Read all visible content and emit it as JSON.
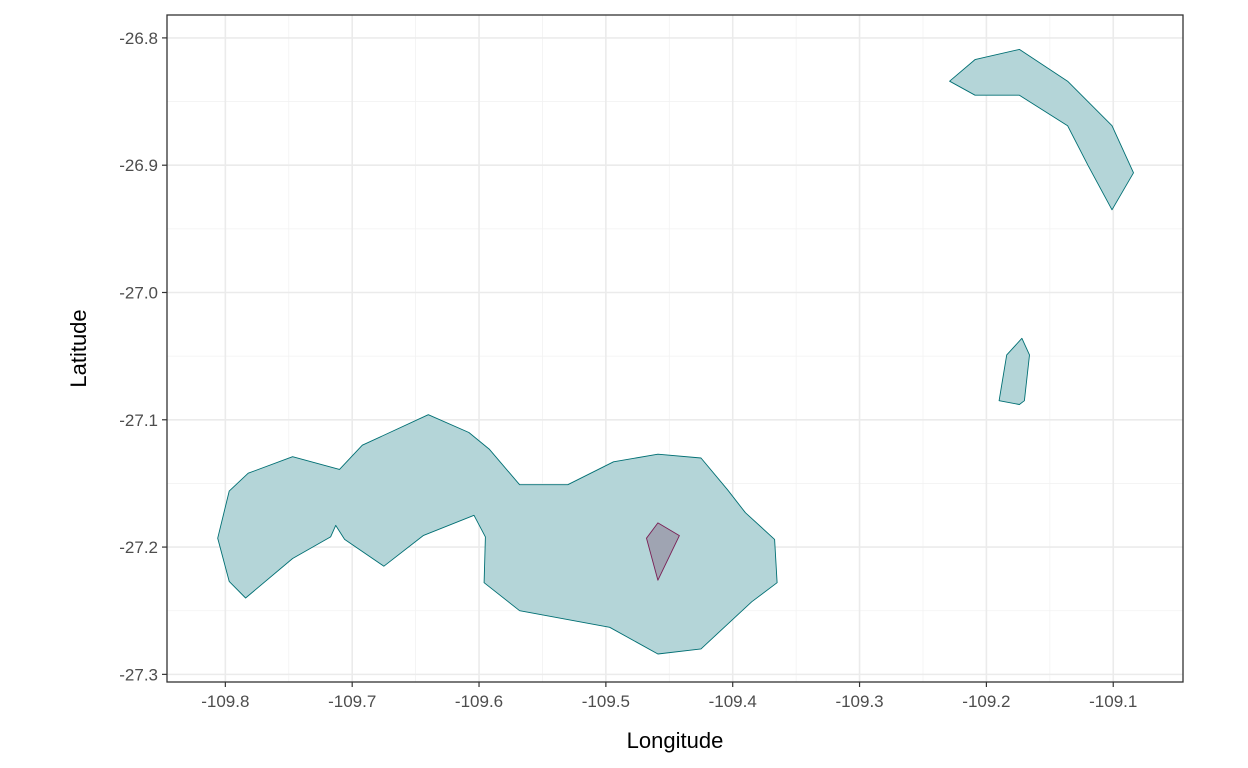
{
  "chart_data": {
    "type": "map",
    "title": "",
    "xlabel": "Longitude",
    "ylabel": "Latitude",
    "xlim": [
      -109.846,
      -109.045
    ],
    "ylim": [
      -27.306,
      -26.782
    ],
    "grid": true,
    "theme": "bw",
    "x_ticks": [
      {
        "value": -109.8,
        "label": "-109.8"
      },
      {
        "value": -109.7,
        "label": "-109.7"
      },
      {
        "value": -109.6,
        "label": "-109.6"
      },
      {
        "value": -109.5,
        "label": "-109.5"
      },
      {
        "value": -109.4,
        "label": "-109.4"
      },
      {
        "value": -109.3,
        "label": "-109.3"
      },
      {
        "value": -109.2,
        "label": "-109.2"
      },
      {
        "value": -109.1,
        "label": "-109.1"
      }
    ],
    "y_ticks": [
      {
        "value": -26.8,
        "label": "-26.8"
      },
      {
        "value": -26.9,
        "label": "-26.9"
      },
      {
        "value": -27.0,
        "label": "-27.0"
      },
      {
        "value": -27.1,
        "label": "-27.1"
      },
      {
        "value": -27.2,
        "label": "-27.2"
      },
      {
        "value": -27.3,
        "label": "-27.3"
      }
    ],
    "polygons": [
      {
        "fill": "#b4d5d8",
        "stroke": "#006f73",
        "points": [
          [
            -109.806,
            -27.193
          ],
          [
            -109.797,
            -27.227
          ],
          [
            -109.784,
            -27.24
          ],
          [
            -109.747,
            -27.209
          ],
          [
            -109.717,
            -27.192
          ],
          [
            -109.713,
            -27.183
          ],
          [
            -109.706,
            -27.194
          ],
          [
            -109.675,
            -27.215
          ],
          [
            -109.644,
            -27.191
          ],
          [
            -109.604,
            -27.175
          ],
          [
            -109.595,
            -27.192
          ],
          [
            -109.596,
            -27.228
          ],
          [
            -109.568,
            -27.25
          ],
          [
            -109.497,
            -27.263
          ],
          [
            -109.459,
            -27.284
          ],
          [
            -109.425,
            -27.28
          ],
          [
            -109.385,
            -27.243
          ],
          [
            -109.365,
            -27.228
          ],
          [
            -109.367,
            -27.194
          ],
          [
            -109.39,
            -27.173
          ],
          [
            -109.404,
            -27.155
          ],
          [
            -109.425,
            -27.13
          ],
          [
            -109.459,
            -27.127
          ],
          [
            -109.494,
            -27.133
          ],
          [
            -109.53,
            -27.151
          ],
          [
            -109.568,
            -27.151
          ],
          [
            -109.592,
            -27.123
          ],
          [
            -109.608,
            -27.11
          ],
          [
            -109.64,
            -27.096
          ],
          [
            -109.692,
            -27.12
          ],
          [
            -109.71,
            -27.139
          ],
          [
            -109.747,
            -27.129
          ],
          [
            -109.782,
            -27.142
          ],
          [
            -109.797,
            -27.156
          ]
        ]
      },
      {
        "fill": "#b4d5d8",
        "stroke": "#006f73",
        "points": [
          [
            -109.229,
            -26.834
          ],
          [
            -109.209,
            -26.817
          ],
          [
            -109.174,
            -26.809
          ],
          [
            -109.136,
            -26.834
          ],
          [
            -109.101,
            -26.869
          ],
          [
            -109.084,
            -26.906
          ],
          [
            -109.101,
            -26.935
          ],
          [
            -109.12,
            -26.9
          ],
          [
            -109.136,
            -26.869
          ],
          [
            -109.174,
            -26.845
          ],
          [
            -109.209,
            -26.845
          ]
        ]
      },
      {
        "fill": "#b4d5d8",
        "stroke": "#006f73",
        "points": [
          [
            -109.19,
            -27.085
          ],
          [
            -109.184,
            -27.049
          ],
          [
            -109.172,
            -27.036
          ],
          [
            -109.166,
            -27.049
          ],
          [
            -109.17,
            -27.085
          ],
          [
            -109.174,
            -27.088
          ]
        ]
      },
      {
        "fill": "#9fa4b2",
        "stroke": "#7a1f55",
        "points": [
          [
            -109.468,
            -27.193
          ],
          [
            -109.459,
            -27.181
          ],
          [
            -109.442,
            -27.191
          ],
          [
            -109.459,
            -27.226
          ]
        ]
      }
    ]
  }
}
